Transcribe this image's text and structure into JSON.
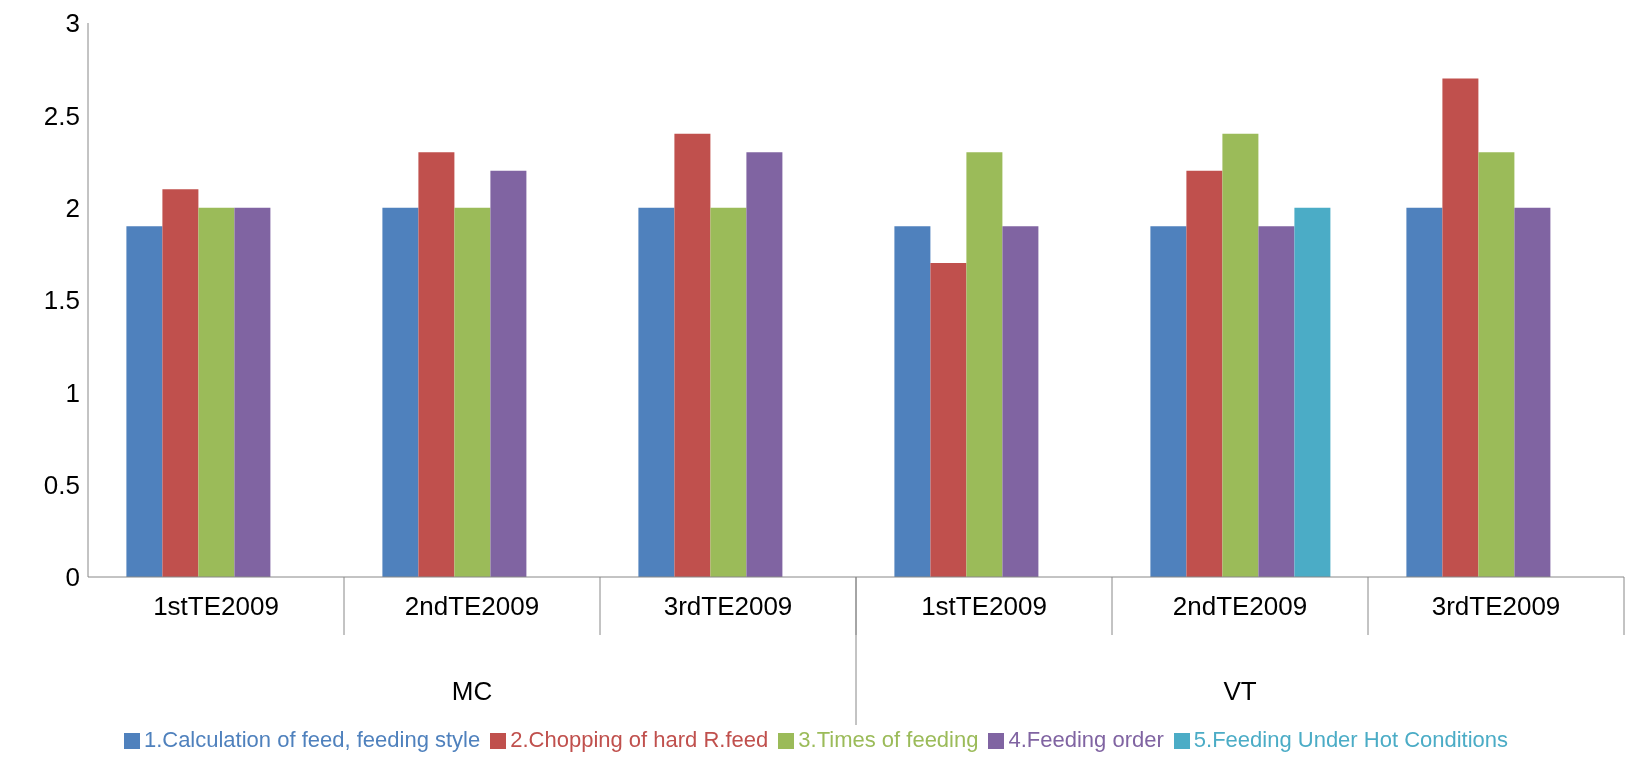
{
  "chart_data": {
    "type": "bar",
    "categories": [
      "1stTE2009",
      "2ndTE2009",
      "3rdTE2009",
      "1stTE2009",
      "2ndTE2009",
      "3rdTE2009"
    ],
    "annotations": [
      "MC",
      "VT"
    ],
    "series": [
      {
        "name": "1.Calculation of feed, feeding style",
        "color": "#4f81bd",
        "values": [
          1.9,
          2.0,
          2.0,
          1.9,
          1.9,
          2.0
        ]
      },
      {
        "name": "2.Chopping of hard R.feed",
        "color": "#c0504d",
        "values": [
          2.1,
          2.3,
          2.4,
          1.7,
          2.2,
          2.7
        ]
      },
      {
        "name": "3.Times of feeding",
        "color": "#9bbb59",
        "values": [
          2.0,
          2.0,
          2.0,
          2.3,
          2.4,
          2.3
        ]
      },
      {
        "name": "4.Feeding order",
        "color": "#8064a2",
        "values": [
          2.0,
          2.2,
          2.3,
          1.9,
          1.9,
          2.0
        ]
      },
      {
        "name": "5.Feeding Under Hot Conditions",
        "color": "#4bacc6",
        "values": [
          null,
          null,
          null,
          null,
          2.0,
          null
        ]
      }
    ],
    "ylim": [
      0,
      3
    ],
    "yticks": [
      0,
      0.5,
      1,
      1.5,
      2,
      2.5,
      3
    ],
    "grid": false,
    "legend": "bottom"
  }
}
